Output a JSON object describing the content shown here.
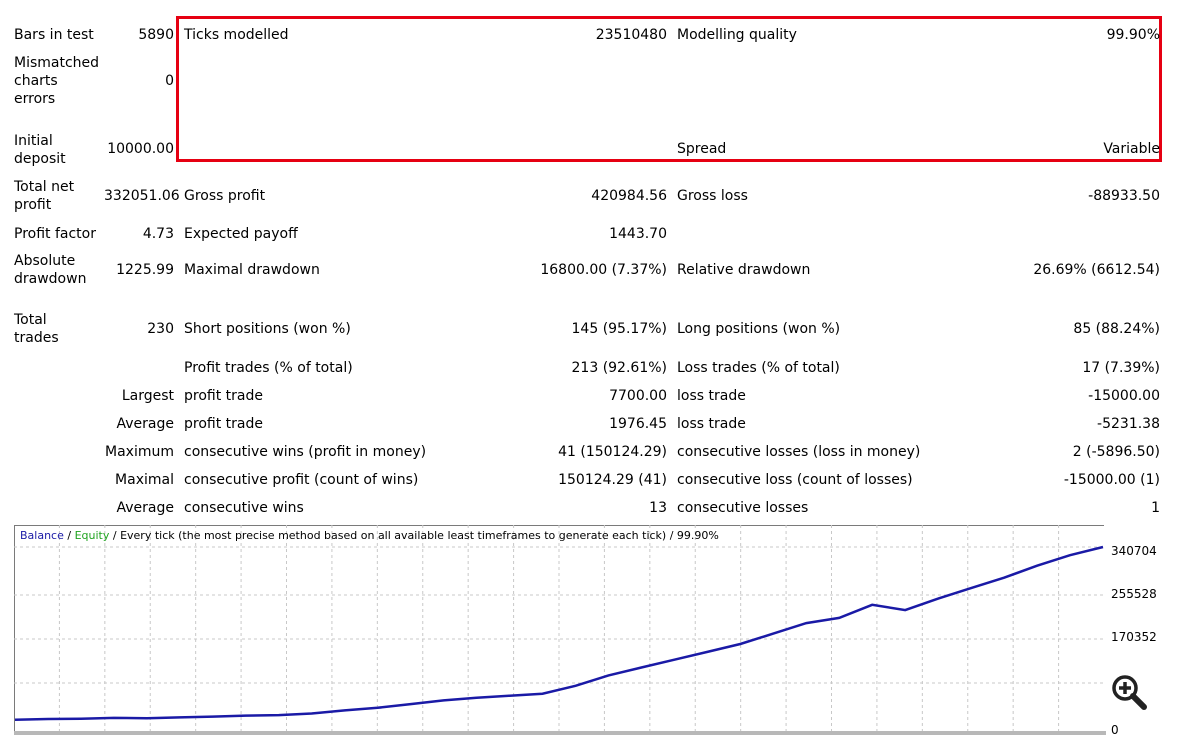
{
  "report": {
    "bars_in_test": {
      "label": "Bars in test",
      "value": "5890"
    },
    "ticks_modelled": {
      "label": "Ticks modelled",
      "value": "23510480"
    },
    "modelling_quality": {
      "label": "Modelling quality",
      "value": "99.90%"
    },
    "mismatched": {
      "label": "Mismatched charts errors",
      "value": "0"
    },
    "initial_deposit": {
      "label": "Initial deposit",
      "value": "10000.00"
    },
    "spread": {
      "label": "Spread",
      "value": "Variable"
    },
    "total_net_profit": {
      "label": "Total net profit",
      "value": "332051.06"
    },
    "gross_profit": {
      "label": "Gross profit",
      "value": "420984.56"
    },
    "gross_loss": {
      "label": "Gross loss",
      "value": "-88933.50"
    },
    "profit_factor": {
      "label": "Profit factor",
      "value": "4.73"
    },
    "expected_payoff": {
      "label": "Expected payoff",
      "value": "1443.70"
    },
    "absolute_drawdown": {
      "label": "Absolute drawdown",
      "value": "1225.99"
    },
    "maximal_drawdown": {
      "label": "Maximal drawdown",
      "value": "16800.00 (7.37%)"
    },
    "relative_drawdown": {
      "label": "Relative drawdown",
      "value": "26.69% (6612.54)"
    },
    "total_trades": {
      "label": "Total trades",
      "value": "230"
    },
    "short_positions": {
      "label": "Short positions (won %)",
      "value": "145 (95.17%)"
    },
    "long_positions": {
      "label": "Long positions (won %)",
      "value": "85 (88.24%)"
    },
    "profit_trades": {
      "label": "Profit trades (% of total)",
      "value": "213 (92.61%)"
    },
    "loss_trades": {
      "label": "Loss trades (% of total)",
      "value": "17 (7.39%)"
    },
    "largest": {
      "label": "Largest",
      "profit_label": "profit trade",
      "profit_value": "7700.00",
      "loss_label": "loss trade",
      "loss_value": "-15000.00"
    },
    "average": {
      "label": "Average",
      "profit_label": "profit trade",
      "profit_value": "1976.45",
      "loss_label": "loss trade",
      "loss_value": "-5231.38"
    },
    "maximum": {
      "label": "Maximum",
      "wins_label": "consecutive wins (profit in money)",
      "wins_value": "41 (150124.29)",
      "losses_label": "consecutive losses (loss in money)",
      "losses_value": "2 (-5896.50)"
    },
    "maximal": {
      "label": "Maximal",
      "profit_label": "consecutive profit (count of wins)",
      "profit_value": "150124.29 (41)",
      "loss_label": "consecutive loss (count of losses)",
      "loss_value": "-15000.00 (1)"
    },
    "average_consecutive": {
      "label": "Average",
      "wins_label": "consecutive wins",
      "wins_value": "13",
      "losses_label": "consecutive losses",
      "losses_value": "1"
    }
  },
  "chart": {
    "legend_balance": "Balance",
    "legend_sep1": " / ",
    "legend_equity": "Equity",
    "legend_rest": " / Every tick (the most precise method based on all available least timeframes to generate each tick) / 99.90%",
    "balance_color": "#1a1aa6",
    "equity_color": "#1fa31f",
    "zoom_icon": "zoom-in-icon"
  },
  "chart_data": {
    "type": "line",
    "series": [
      {
        "name": "Balance",
        "values": [
          10000,
          11500,
          12000,
          13500,
          13000,
          14500,
          16000,
          18000,
          19000,
          22000,
          28000,
          33000,
          40000,
          47000,
          52000,
          56000,
          60000,
          75000,
          95000,
          110000,
          125000,
          140000,
          155000,
          175000,
          195000,
          205000,
          230000,
          220000,
          242000,
          262000,
          282000,
          305000,
          325000,
          340704
        ]
      }
    ],
    "yticks": [
      "340704",
      "255528",
      "170352",
      "0"
    ],
    "ylim": [
      0,
      340704
    ]
  }
}
